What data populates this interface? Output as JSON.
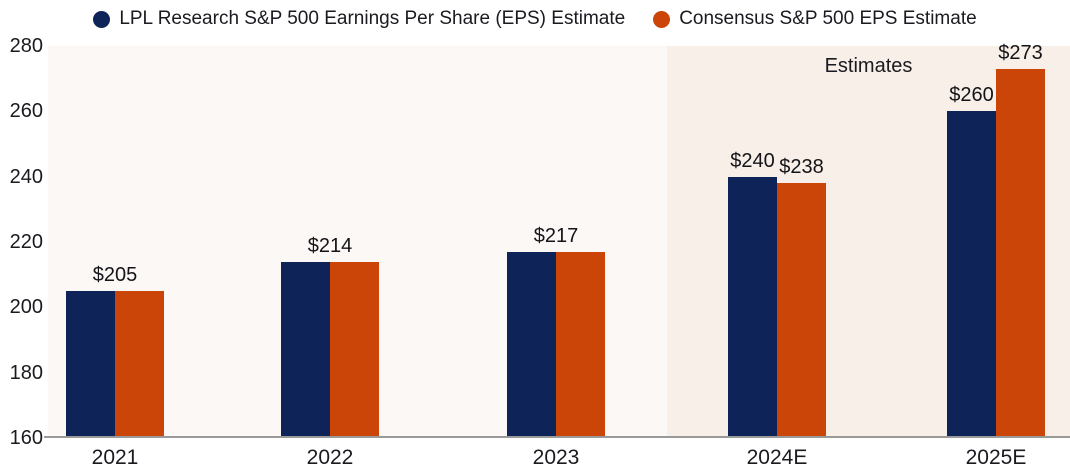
{
  "chart_data": {
    "type": "bar",
    "title": "",
    "categories": [
      "2021",
      "2022",
      "2023",
      "2024E",
      "2025E"
    ],
    "series": [
      {
        "name": "LPL Research S&P 500 Earnings Per Share (EPS) Estimate",
        "color": "#0e2458",
        "values": [
          205,
          214,
          217,
          240,
          260
        ]
      },
      {
        "name": "Consensus S&P 500 EPS Estimate",
        "color": "#cc4508",
        "values": [
          205,
          214,
          217,
          238,
          273
        ]
      }
    ],
    "data_labels": [
      [
        "$205"
      ],
      [
        "$214"
      ],
      [
        "$217"
      ],
      [
        "$240",
        "$238"
      ],
      [
        "$260",
        "$273"
      ]
    ],
    "ylim": [
      160,
      280
    ],
    "yticks": [
      280,
      260,
      240,
      220,
      200,
      180,
      160
    ],
    "annotation": "Estimates",
    "estimates_start_index": 3,
    "grid": false,
    "legend_position": "top",
    "colors": {
      "plot_bg_left": "#fcf8f6",
      "plot_bg_right": "#f8efe8",
      "axis_line": "#999999",
      "text": "#1a1a20"
    }
  }
}
